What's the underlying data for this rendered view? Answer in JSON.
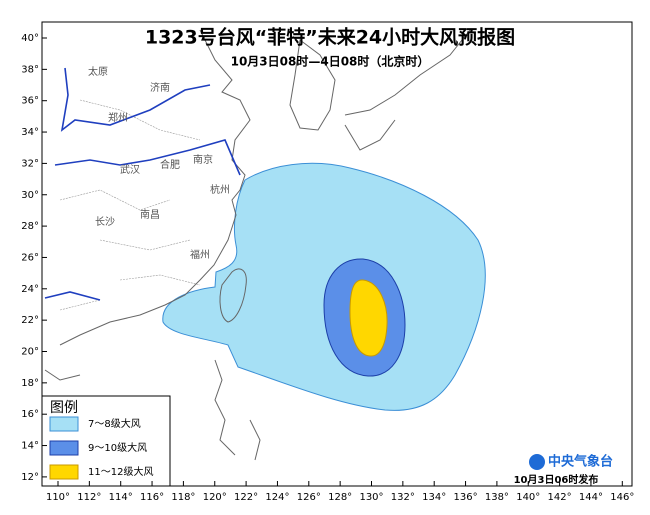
{
  "header": {
    "title": "1323号台风“菲特”未来24小时大风预报图",
    "subtitle": "10月3日08时—4日08时（北京时）"
  },
  "lat_labels": [
    "40°",
    "38°",
    "36°",
    "34°",
    "32°",
    "30°",
    "28°",
    "26°",
    "24°",
    "22°",
    "20°",
    "18°",
    "16°",
    "14°",
    "12°"
  ],
  "lon_labels": [
    "110°",
    "112°",
    "114°",
    "116°",
    "118°",
    "120°",
    "122°",
    "124°",
    "126°",
    "128°",
    "130°",
    "132°",
    "134°",
    "136°",
    "138°",
    "140°",
    "142°",
    "144°",
    "146°"
  ],
  "cities": [
    "太原",
    "济南",
    "郑州",
    "合肥",
    "南京",
    "杭州",
    "武汉",
    "长沙",
    "南昌",
    "福州"
  ],
  "legend": {
    "title": "图例",
    "items": [
      "7～8级大风",
      "9～10级大风",
      "11～12级大风"
    ]
  },
  "footer": {
    "agency": "中央气象台",
    "issued": "10月3日06时发布"
  }
}
